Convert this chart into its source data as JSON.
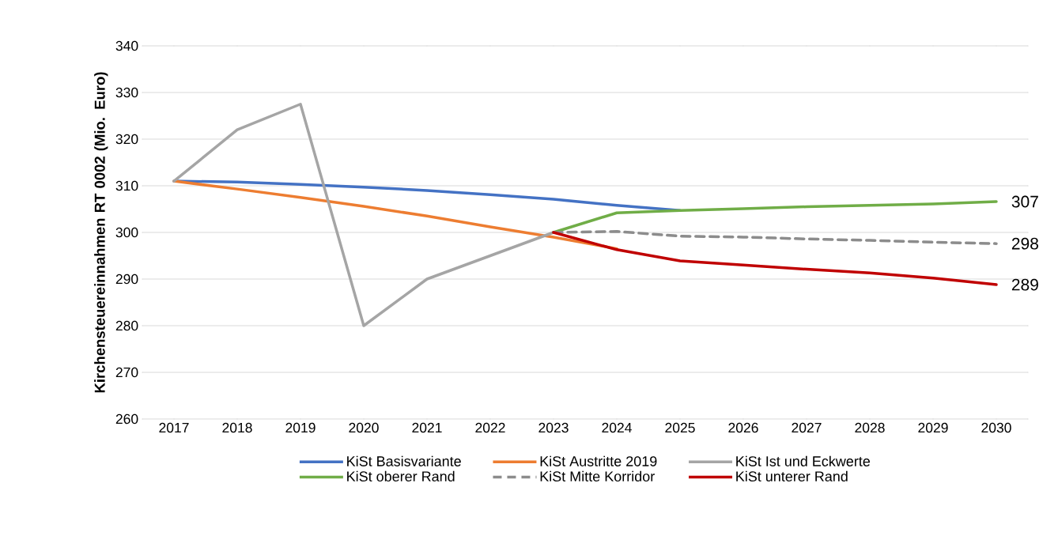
{
  "chart_data": {
    "type": "line",
    "ylabel": "Kirchensteuereinnahmen RT 0002 (Mio. Euro)",
    "categories": [
      "2017",
      "2018",
      "2019",
      "2020",
      "2021",
      "2022",
      "2023",
      "2024",
      "2025",
      "2026",
      "2027",
      "2028",
      "2029",
      "2030"
    ],
    "ylim": [
      260,
      340
    ],
    "yticks": [
      260,
      270,
      280,
      290,
      300,
      310,
      320,
      330,
      340
    ],
    "grid": "y",
    "legend": "bottom",
    "marker": "none",
    "series": [
      {
        "name": "KiSt Basisvariante",
        "color": "#4472c4",
        "values": [
          311,
          310.8,
          310.3,
          309.7,
          309,
          308.1,
          307.1,
          305.8,
          304.7,
          null,
          null,
          null,
          null,
          null
        ]
      },
      {
        "name": "KiSt Austritte 2019",
        "color": "#ed7d31",
        "values": [
          311,
          309.3,
          307.5,
          305.6,
          303.5,
          301.2,
          299,
          296.5,
          null,
          null,
          null,
          null,
          null,
          null
        ]
      },
      {
        "name": "KiSt Ist und Eckwerte",
        "color": "#a5a5a5",
        "values": [
          311,
          322,
          327.5,
          280,
          290,
          295,
          300,
          null,
          null,
          null,
          null,
          null,
          null,
          null
        ]
      },
      {
        "name": "KiSt oberer Rand",
        "color": "#70ad47",
        "values": [
          null,
          null,
          null,
          null,
          null,
          null,
          300,
          304.2,
          304.7,
          305.1,
          305.5,
          305.8,
          306.1,
          306.6
        ],
        "value_labels": [
          null,
          null,
          null,
          null,
          null,
          null,
          null,
          null,
          null,
          null,
          null,
          null,
          null,
          "307"
        ]
      },
      {
        "name": "KiSt Mitte Korridor",
        "color": "#8c8c8c",
        "line_style": "dashed",
        "values": [
          null,
          null,
          null,
          null,
          null,
          null,
          300,
          300.2,
          299.2,
          299,
          298.6,
          298.3,
          297.9,
          297.6
        ],
        "value_labels": [
          null,
          null,
          null,
          null,
          null,
          null,
          null,
          null,
          null,
          null,
          null,
          null,
          null,
          "298"
        ]
      },
      {
        "name": "KiSt unterer Rand",
        "color": "#c00000",
        "values": [
          null,
          null,
          null,
          null,
          null,
          null,
          300,
          296.3,
          293.9,
          293,
          292.1,
          291.3,
          290.2,
          288.8
        ],
        "value_labels": [
          null,
          null,
          null,
          null,
          null,
          null,
          null,
          null,
          null,
          null,
          null,
          null,
          null,
          "289"
        ]
      }
    ]
  }
}
